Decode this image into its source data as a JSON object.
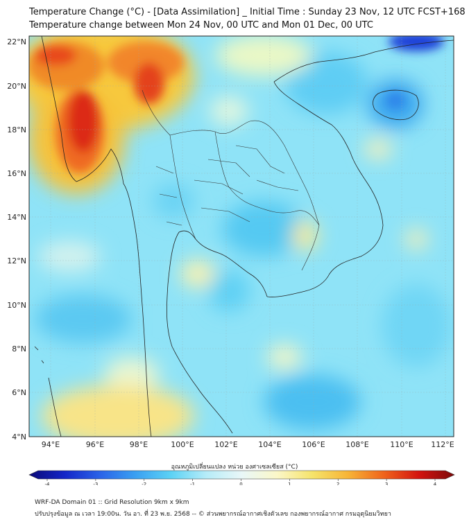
{
  "header": {
    "title_line1": "Temperature Change (°C) - [Data Assimilation] _ Initial Time : Sunday 23 Nov, 12 UTC FCST+168",
    "title_line2": "Temperature change between Mon 24 Nov, 00 UTC and Mon 01 Dec, 00 UTC"
  },
  "map": {
    "lat_labels": [
      "22°N",
      "20°N",
      "18°N",
      "16°N",
      "14°N",
      "12°N",
      "10°N",
      "8°N",
      "6°N",
      "4°N"
    ],
    "lon_labels": [
      "94°E",
      "96°E",
      "98°E",
      "100°E",
      "102°E",
      "104°E",
      "106°E",
      "108°E",
      "110°E",
      "112°E"
    ],
    "colorscale": {
      "min": -4,
      "max": 4,
      "colors": [
        "#0b0a78",
        "#1426c8",
        "#2a63e8",
        "#3aa0f2",
        "#5cd2f5",
        "#b6ecf8",
        "#e9f7f8",
        "#fbf7c8",
        "#f6e36a",
        "#f7b436",
        "#f0641c",
        "#d3140f",
        "#7d0a0a"
      ]
    },
    "colorbar_ticks": [
      "-4",
      "-3",
      "-2",
      "-1",
      "0",
      "1",
      "2",
      "3",
      "4"
    ],
    "colorbar_title": "อุณหภูมิเปลี่ยนแปลง หน่วย องศาเซลเซียส (°C)"
  },
  "footer": {
    "line1": "WRF-DA Domain 01 :: Grid Resolution 9km x 9km",
    "line2": "ปรับปรุงข้อมูล ณ เวลา 19:00น. วัน อา. ที่ 23 พ.ย. 2568 -- © ส่วนพยากรณ์อากาศเชิงตัวเลข กองพยากรณ์อากาศ กรมอุตุนิยมวิทยา"
  }
}
